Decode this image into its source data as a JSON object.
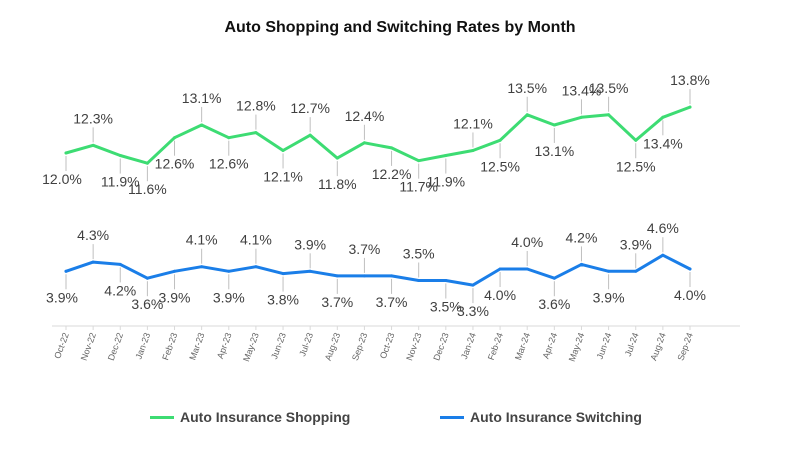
{
  "chart_data": {
    "type": "line",
    "title": "Auto Shopping and Switching Rates by Month",
    "categories": [
      "Oct-22",
      "Nov-22",
      "Dec-22",
      "Jan-23",
      "Feb-23",
      "Mar-23",
      "Apr-23",
      "May-23",
      "Jun-23",
      "Jul-23",
      "Aug-23",
      "Sep-23",
      "Oct-23",
      "Nov-23",
      "Dec-23",
      "Jan-24",
      "Feb-24",
      "Mar-24",
      "Apr-24",
      "May-24",
      "Jun-24",
      "Jul-24",
      "Aug-24",
      "Sep-24"
    ],
    "series": [
      {
        "name": "Auto Insurance Shopping",
        "color": "#3ddc73",
        "values": [
          12.0,
          12.3,
          11.9,
          11.6,
          12.6,
          13.1,
          12.6,
          12.8,
          12.1,
          12.7,
          11.8,
          12.4,
          12.2,
          11.7,
          11.9,
          12.1,
          12.5,
          13.5,
          13.1,
          13.4,
          13.5,
          12.5,
          13.4,
          13.8
        ],
        "labels": [
          "12.0%",
          "12.3%",
          "11.9%",
          "11.6%",
          "12.6%",
          "13.1%",
          "12.6%",
          "12.8%",
          "12.1%",
          "12.7%",
          "11.8%",
          "12.4%",
          "12.2%",
          "11.7%",
          "11.9%",
          "12.1%",
          "12.5%",
          "13.5%",
          "13.1%",
          "13.4%",
          "13.5%",
          "12.5%",
          "13.4%",
          "13.8%"
        ]
      },
      {
        "name": "Auto Insurance Switching",
        "color": "#1a7ee8",
        "values": [
          3.9,
          4.3,
          4.2,
          3.6,
          3.9,
          4.1,
          3.9,
          4.1,
          3.8,
          3.9,
          3.7,
          3.7,
          3.7,
          3.5,
          3.5,
          3.3,
          4.0,
          4.0,
          3.6,
          4.2,
          3.9,
          3.9,
          4.6,
          4.0
        ],
        "labels": [
          "3.9%",
          "4.3%",
          "4.2%",
          "3.6%",
          "3.9%",
          "4.1%",
          "3.9%",
          "4.1%",
          "3.8%",
          "3.9%",
          "3.7%",
          "3.7%",
          "3.7%",
          "3.5%",
          "3.5%",
          "3.3%",
          "4.0%",
          "4.0%",
          "3.6%",
          "4.2%",
          "3.9%",
          "3.9%",
          "4.6%",
          "4.0%"
        ]
      }
    ],
    "grid": false,
    "legend_position": "bottom"
  }
}
